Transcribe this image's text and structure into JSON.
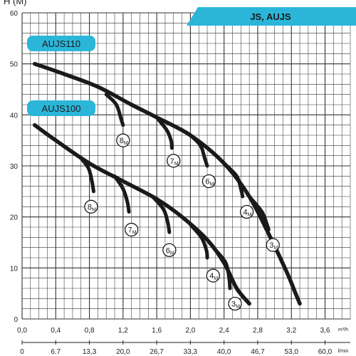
{
  "chart_data": {
    "type": "line",
    "title": "JS, AUJS",
    "ylabel": "H (M)",
    "x_unit_top": "m³/h",
    "x_unit_bottom": "l/min",
    "ylim": [
      0,
      60
    ],
    "xlim": [
      0,
      3.9
    ],
    "yticks": [
      "0",
      "10",
      "20",
      "30",
      "40",
      "50",
      "60"
    ],
    "xticks": [
      "0,0",
      "0,4",
      "0,8",
      "1,2",
      "1,6",
      "2,0",
      "2,4",
      "2,8",
      "3,2",
      "3,6"
    ],
    "xticks_values": [
      0,
      0.4,
      0.8,
      1.2,
      1.6,
      2.0,
      2.4,
      2.8,
      3.2,
      3.6
    ],
    "xticks_lmin": [
      "0",
      "6.7",
      "13,3",
      "20,0",
      "26,7",
      "33,3",
      "40,0",
      "46,7",
      "53,0",
      "60,0"
    ],
    "grid": true,
    "colors": {
      "accent": "#2bb6d9",
      "curve": "#1a1a1a",
      "grid": "#333333"
    },
    "series": [
      {
        "name": "AUJS110",
        "x": [
          0.15,
          0.5,
          0.9,
          1.3,
          1.6,
          2.0,
          2.4,
          2.7,
          2.95,
          3.15,
          3.25,
          3.3
        ],
        "y": [
          50,
          48,
          45.5,
          42,
          39.5,
          36,
          30.5,
          24,
          16,
          9,
          5,
          3
        ],
        "branches": [
          {
            "label": "8",
            "unit": "M",
            "x": [
              1.0,
              1.12,
              1.18,
              1.2
            ],
            "y": [
              44,
              42,
              39,
              38
            ],
            "label_x": 1.2,
            "label_y": 35
          },
          {
            "label": "7",
            "unit": "M",
            "x": [
              1.6,
              1.72,
              1.77,
              1.78
            ],
            "y": [
              39.5,
              37,
              35,
              33.5
            ],
            "label_x": 1.8,
            "label_y": 31
          },
          {
            "label": "6",
            "unit": "M",
            "x": [
              2.0,
              2.12,
              2.17,
              2.2
            ],
            "y": [
              36,
              34,
              31.5,
              30
            ],
            "label_x": 2.22,
            "label_y": 27
          },
          {
            "label": "4",
            "unit": "M",
            "x": [
              2.4,
              2.55,
              2.6,
              2.62
            ],
            "y": [
              30.5,
              28,
              25.5,
              24
            ],
            "label_x": 2.67,
            "label_y": 21
          },
          {
            "label": "3",
            "unit": "M",
            "x": [
              2.7,
              2.85,
              2.91,
              2.93
            ],
            "y": [
              24,
              21,
              18.5,
              17.5
            ],
            "label_x": 2.98,
            "label_y": 14.5
          }
        ]
      },
      {
        "name": "AUJS100",
        "x": [
          0.15,
          0.4,
          0.8,
          1.2,
          1.6,
          1.9,
          2.2,
          2.4,
          2.55,
          2.7
        ],
        "y": [
          38,
          35,
          30.5,
          27,
          23.5,
          20,
          15.5,
          11,
          6,
          3
        ],
        "branches": [
          {
            "label": "8",
            "unit": "M",
            "x": [
              0.7,
              0.79,
              0.83,
              0.85
            ],
            "y": [
              31.5,
              29.5,
              27,
              25
            ],
            "label_x": 0.82,
            "label_y": 22
          },
          {
            "label": "7",
            "unit": "M",
            "x": [
              1.1,
              1.2,
              1.25,
              1.27
            ],
            "y": [
              28,
              25.5,
              23,
              21
            ],
            "label_x": 1.3,
            "label_y": 17.5
          },
          {
            "label": "6",
            "unit": "M",
            "x": [
              1.55,
              1.68,
              1.73,
              1.75
            ],
            "y": [
              24,
              21.5,
              19,
              17
            ],
            "label_x": 1.75,
            "label_y": 13.5
          },
          {
            "label": "4",
            "unit": "M",
            "x": [
              2.0,
              2.13,
              2.19,
              2.2
            ],
            "y": [
              18.5,
              16,
              13.5,
              12
            ],
            "label_x": 2.27,
            "label_y": 8.5
          },
          {
            "label": "3",
            "unit": "M",
            "x": [
              2.3,
              2.42,
              2.46,
              2.47
            ],
            "y": [
              13.5,
              11,
              8,
              6
            ],
            "label_x": 2.53,
            "label_y": 3
          }
        ]
      }
    ]
  }
}
